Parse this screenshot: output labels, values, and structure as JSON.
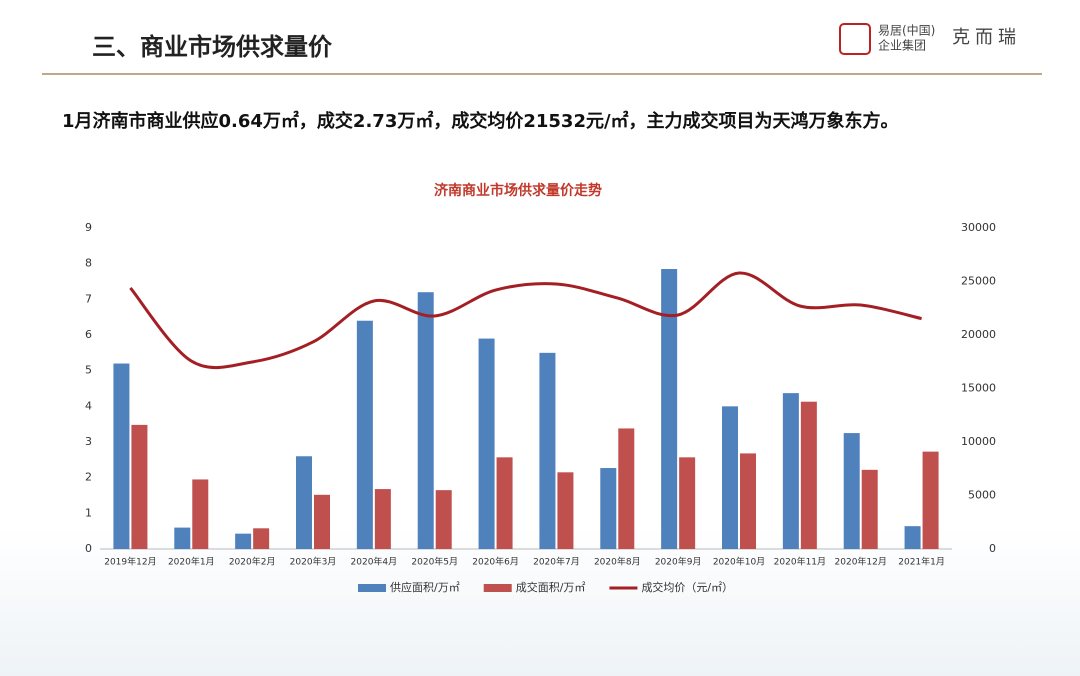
{
  "header": {
    "title": "三、商业市场供求量价",
    "logo_left_top": "易居(中国)",
    "logo_left_bottom": "企业集团",
    "logo_right": "克而瑞"
  },
  "summary": "1月济南市商业供应0.64万㎡，成交2.73万㎡，成交均价21532元/㎡，主力成交项目为天鸿万象东方。",
  "chart_data": {
    "type": "bar",
    "title": "济南商业市场供求量价走势",
    "categories": [
      "2019年12月",
      "2020年1月",
      "2020年2月",
      "2020年3月",
      "2020年4月",
      "2020年5月",
      "2020年6月",
      "2020年7月",
      "2020年8月",
      "2020年9月",
      "2020年10月",
      "2020年11月",
      "2020年12月",
      "2021年1月"
    ],
    "series": [
      {
        "name": "供应面积/万㎡",
        "type": "bar",
        "color": "#4f81bd",
        "values": [
          5.2,
          0.6,
          0.43,
          2.6,
          6.4,
          7.2,
          5.9,
          5.5,
          2.27,
          7.85,
          4.0,
          4.37,
          3.25,
          0.64
        ]
      },
      {
        "name": "成交面积/万㎡",
        "type": "bar",
        "color": "#c0504d",
        "values": [
          3.48,
          1.95,
          0.58,
          1.52,
          1.68,
          1.65,
          2.57,
          2.15,
          3.38,
          2.57,
          2.68,
          4.13,
          2.22,
          2.73
        ]
      },
      {
        "name": "成交均价（元/㎡）",
        "type": "line",
        "axis": "y2",
        "color": "#a31f24",
        "values": [
          24400,
          17570,
          17480,
          19350,
          23180,
          21780,
          24200,
          24770,
          23460,
          21870,
          25790,
          22710,
          22800,
          21532
        ]
      }
    ],
    "ylim": [
      0,
      9
    ],
    "yticks": [
      0,
      1,
      2,
      3,
      4,
      5,
      6,
      7,
      8,
      9
    ],
    "y2lim": [
      0,
      30000
    ],
    "y2ticks": [
      0,
      5000,
      10000,
      15000,
      20000,
      25000,
      30000
    ],
    "legend": "bottom",
    "grid": false
  }
}
